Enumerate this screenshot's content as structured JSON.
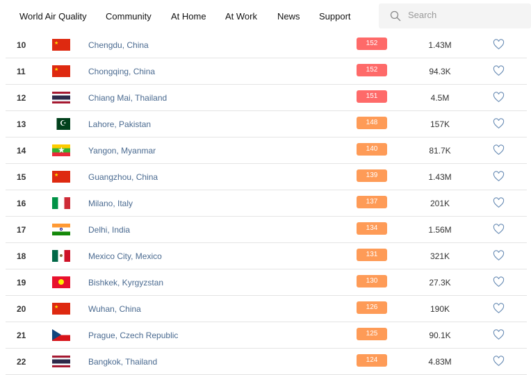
{
  "nav": {
    "items": [
      "World Air Quality",
      "Community",
      "At Home",
      "At Work",
      "News",
      "Support"
    ],
    "search_placeholder": "Search"
  },
  "colors": {
    "unhealthy": "#fe6a69",
    "sensitive": "#fe9b57"
  },
  "rows": [
    {
      "rank": "10",
      "flag": "cn",
      "city": "Chengdu, China",
      "aqi": "152",
      "pop": "1.43M"
    },
    {
      "rank": "11",
      "flag": "cn",
      "city": "Chongqing, China",
      "aqi": "152",
      "pop": "94.3K"
    },
    {
      "rank": "12",
      "flag": "th",
      "city": "Chiang Mai, Thailand",
      "aqi": "151",
      "pop": "4.5M"
    },
    {
      "rank": "13",
      "flag": "pk",
      "city": "Lahore, Pakistan",
      "aqi": "148",
      "pop": "157K"
    },
    {
      "rank": "14",
      "flag": "mm",
      "city": "Yangon, Myanmar",
      "aqi": "140",
      "pop": "81.7K"
    },
    {
      "rank": "15",
      "flag": "cn",
      "city": "Guangzhou, China",
      "aqi": "139",
      "pop": "1.43M"
    },
    {
      "rank": "16",
      "flag": "it",
      "city": "Milano, Italy",
      "aqi": "137",
      "pop": "201K"
    },
    {
      "rank": "17",
      "flag": "in",
      "city": "Delhi, India",
      "aqi": "134",
      "pop": "1.56M"
    },
    {
      "rank": "18",
      "flag": "mx",
      "city": "Mexico City, Mexico",
      "aqi": "131",
      "pop": "321K"
    },
    {
      "rank": "19",
      "flag": "kg",
      "city": "Bishkek, Kyrgyzstan",
      "aqi": "130",
      "pop": "27.3K"
    },
    {
      "rank": "20",
      "flag": "cn",
      "city": "Wuhan, China",
      "aqi": "126",
      "pop": "190K"
    },
    {
      "rank": "21",
      "flag": "cz",
      "city": "Prague, Czech Republic",
      "aqi": "125",
      "pop": "90.1K"
    },
    {
      "rank": "22",
      "flag": "th",
      "city": "Bangkok, Thailand",
      "aqi": "124",
      "pop": "4.83M"
    }
  ]
}
